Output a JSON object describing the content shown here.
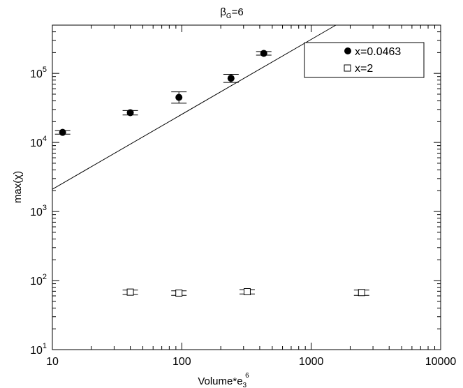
{
  "chart_data": {
    "type": "scatter",
    "title": {
      "base": "β",
      "sub": "G",
      "tail": "=6"
    },
    "xlabel": {
      "base": "Volume*e",
      "sub": "3",
      "sup": "6"
    },
    "ylabel": "max(χ)",
    "x_scale": "log",
    "y_scale": "log",
    "xlim": [
      10,
      10000
    ],
    "ylim": [
      10,
      500000
    ],
    "x_ticks": [
      {
        "value": 10,
        "label": "10"
      },
      {
        "value": 100,
        "label": "100"
      },
      {
        "value": 1000,
        "label": "1000"
      },
      {
        "value": 10000,
        "label": "10000"
      }
    ],
    "y_ticks": [
      {
        "value": 10,
        "base": "10",
        "exp": "1"
      },
      {
        "value": 100,
        "base": "10",
        "exp": "2"
      },
      {
        "value": 1000,
        "base": "10",
        "exp": "3"
      },
      {
        "value": 10000,
        "base": "10",
        "exp": "4"
      },
      {
        "value": 100000,
        "base": "10",
        "exp": "5"
      }
    ],
    "grid": false,
    "legend_position": "top-right",
    "series": [
      {
        "name": "x=0.0463",
        "marker": "filled-circle",
        "color": "#000000",
        "points": [
          {
            "x": 12,
            "y": 14000,
            "ylo": 13200,
            "yhi": 14800
          },
          {
            "x": 40,
            "y": 27000,
            "ylo": 25000,
            "yhi": 29000
          },
          {
            "x": 95,
            "y": 45000,
            "ylo": 37000,
            "yhi": 54000
          },
          {
            "x": 240,
            "y": 85000,
            "ylo": 74000,
            "yhi": 97000
          },
          {
            "x": 430,
            "y": 195000,
            "ylo": 184000,
            "yhi": 207000
          }
        ]
      },
      {
        "name": "x=2",
        "marker": "open-square",
        "color": "#000000",
        "points": [
          {
            "x": 40,
            "y": 68,
            "ylo": 63,
            "yhi": 73
          },
          {
            "x": 95,
            "y": 66,
            "ylo": 61,
            "yhi": 71
          },
          {
            "x": 320,
            "y": 69,
            "ylo": 64,
            "yhi": 74
          },
          {
            "x": 2450,
            "y": 67,
            "ylo": 61,
            "yhi": 73
          }
        ]
      }
    ],
    "fit_line": {
      "points": [
        {
          "x": 10,
          "y": 2100
        },
        {
          "x": 1550,
          "y": 500000
        }
      ],
      "color": "#000000"
    }
  }
}
